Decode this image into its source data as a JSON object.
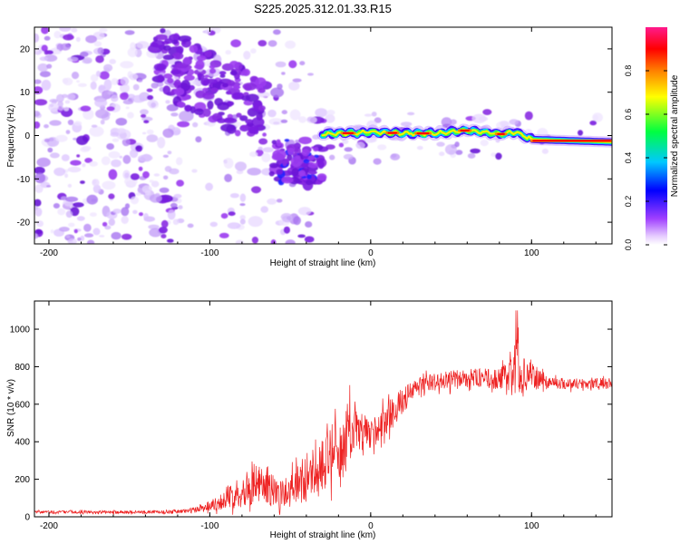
{
  "title": "S225.2025.312.01.33.R15",
  "chart_data": [
    {
      "type": "heatmap",
      "name": "spectrogram",
      "xlabel": "Height of straight line (km)",
      "ylabel": "Frequency (Hz)",
      "xlim": [
        -209,
        150
      ],
      "ylim": [
        -25,
        25
      ],
      "xticks": [
        -200,
        -100,
        0,
        100
      ],
      "yticks": [
        -20,
        -10,
        0,
        10,
        20
      ],
      "ridge": {
        "description": "coherent carrier line near 0 Hz",
        "x_start_km": -30,
        "x_end_km": 150,
        "freq_hz": [
          [
            -30,
            0.3
          ],
          [
            -10,
            0.6
          ],
          [
            0,
            0.8
          ],
          [
            20,
            0.5
          ],
          [
            40,
            0.5
          ],
          [
            60,
            1.2
          ],
          [
            80,
            0.3
          ],
          [
            90,
            0.8
          ],
          [
            100,
            -0.9
          ],
          [
            150,
            -1.5
          ]
        ]
      },
      "colorbar": {
        "label": "Normalized spectral amplitude",
        "range": [
          0.0,
          1.0
        ],
        "ticks": [
          0.0,
          0.2,
          0.4,
          0.6,
          0.8
        ],
        "tick_labels": [
          "0.0",
          "0.2",
          "0.4",
          "0.6",
          "0.8"
        ],
        "colors": [
          "#ffffff",
          "#d9b3ff",
          "#8c2be2",
          "#0000ff",
          "#00d8ff",
          "#00ff00",
          "#ffff00",
          "#ff8000",
          "#ff0000",
          "#ff1493"
        ]
      }
    },
    {
      "type": "line",
      "name": "snr",
      "xlabel": "Height of straight line (km)",
      "ylabel": "SNR (10 * v/v)",
      "xlim": [
        -209,
        150
      ],
      "ylim": [
        0,
        1150
      ],
      "xticks": [
        -200,
        -100,
        0,
        100
      ],
      "yticks": [
        0,
        200,
        400,
        600,
        800,
        1000
      ],
      "color": "#ee2222",
      "series": [
        {
          "name": "SNR",
          "x": [
            -209,
            -200,
            -180,
            -160,
            -140,
            -120,
            -110,
            -100,
            -90,
            -80,
            -70,
            -60,
            -50,
            -40,
            -30,
            -20,
            -10,
            0,
            10,
            20,
            30,
            40,
            50,
            60,
            70,
            80,
            90,
            100,
            110,
            120,
            130,
            140,
            150
          ],
          "values": [
            25,
            25,
            25,
            25,
            25,
            28,
            35,
            60,
            90,
            140,
            180,
            140,
            140,
            210,
            260,
            380,
            460,
            440,
            520,
            620,
            700,
            720,
            730,
            740,
            740,
            730,
            760,
            750,
            720,
            710,
            710,
            710,
            710
          ],
          "noise": [
            8,
            8,
            8,
            8,
            8,
            10,
            15,
            30,
            50,
            90,
            100,
            90,
            100,
            130,
            150,
            170,
            120,
            80,
            90,
            70,
            50,
            45,
            50,
            50,
            50,
            55,
            120,
            70,
            35,
            30,
            30,
            30,
            30
          ]
        }
      ]
    }
  ]
}
